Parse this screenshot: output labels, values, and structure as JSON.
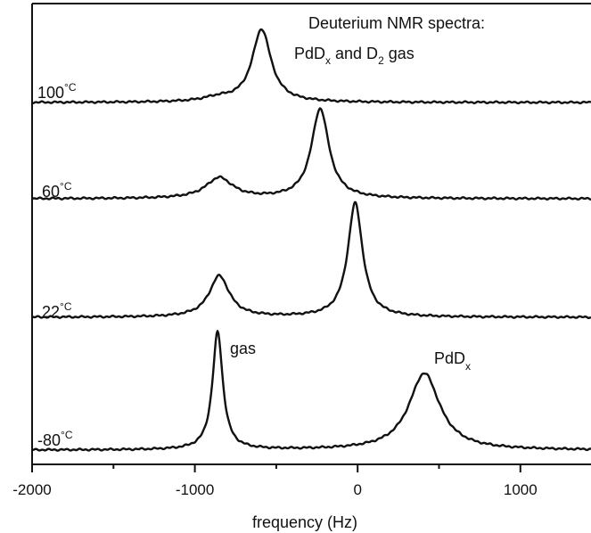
{
  "chart_data": {
    "type": "line",
    "title_line1": "Deuterium NMR spectra:",
    "title_line2": {
      "a": "PdD",
      "a_sub": "x",
      "b": " and D",
      "b_sub": "2",
      "c": " gas"
    },
    "xlabel": "frequency (Hz)",
    "ylabel": "",
    "xlim": [
      -2000,
      1450
    ],
    "x_ticks": [
      -2000,
      -1000,
      0,
      1000
    ],
    "x_tick_labels": [
      "-2000",
      "-1000",
      "0",
      "1000"
    ],
    "grid": false,
    "peak_labels": {
      "gas": "gas",
      "pdd": "PdD",
      "pdd_sub": "x"
    },
    "series": [
      {
        "name": "100°C",
        "label_value": "100",
        "label_unit": "°C",
        "peaks": [
          {
            "center": -590,
            "width": 70,
            "height": 0.78
          },
          {
            "center": -860,
            "width": 110,
            "height": 0.04
          }
        ]
      },
      {
        "name": "60°C",
        "label_value": "60",
        "label_unit": "°C",
        "peaks": [
          {
            "center": -230,
            "width": 65,
            "height": 0.96
          },
          {
            "center": -850,
            "width": 100,
            "height": 0.22
          }
        ]
      },
      {
        "name": "22°C",
        "label_value": "22",
        "label_unit": "°C",
        "peaks": [
          {
            "center": -15,
            "width": 55,
            "height": 1.22
          },
          {
            "center": -850,
            "width": 75,
            "height": 0.44
          }
        ]
      },
      {
        "name": "-80°C",
        "label_value": "-80",
        "label_unit": "°C",
        "peaks": [
          {
            "center": -860,
            "width": 38,
            "height": 1.26
          },
          {
            "center": 410,
            "width": 115,
            "height": 0.82
          }
        ]
      }
    ]
  }
}
